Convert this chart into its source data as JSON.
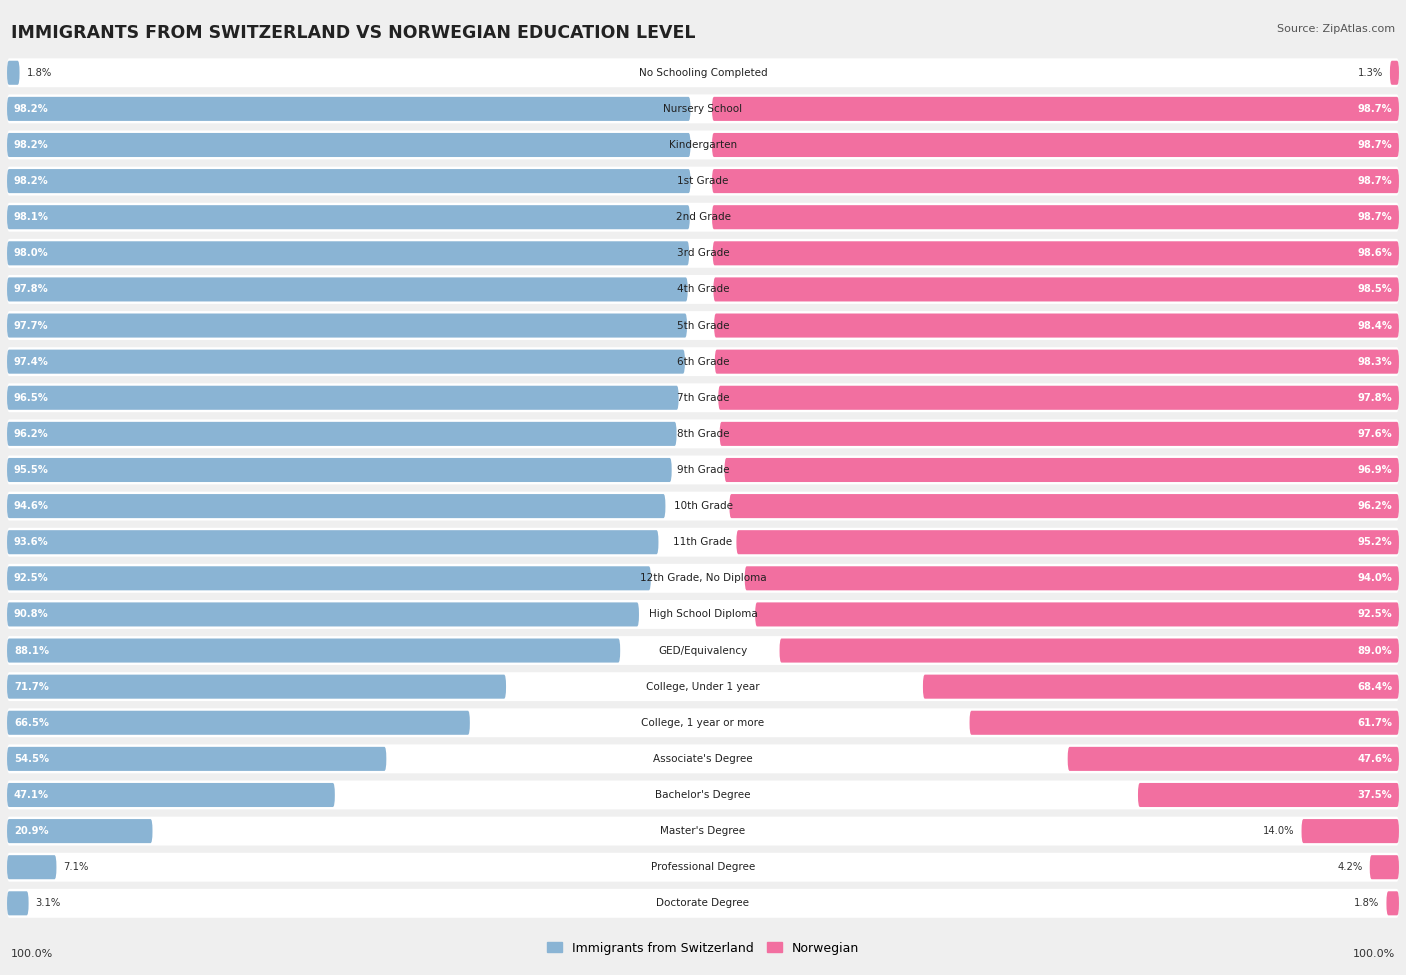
{
  "title": "IMMIGRANTS FROM SWITZERLAND VS NORWEGIAN EDUCATION LEVEL",
  "source": "Source: ZipAtlas.com",
  "legend_left": "Immigrants from Switzerland",
  "legend_right": "Norwegian",
  "left_label": "100.0%",
  "right_label": "100.0%",
  "color_left": "#8ab4d4",
  "color_right": "#f26fa0",
  "background_color": "#efefef",
  "bar_background": "#ffffff",
  "categories": [
    "No Schooling Completed",
    "Nursery School",
    "Kindergarten",
    "1st Grade",
    "2nd Grade",
    "3rd Grade",
    "4th Grade",
    "5th Grade",
    "6th Grade",
    "7th Grade",
    "8th Grade",
    "9th Grade",
    "10th Grade",
    "11th Grade",
    "12th Grade, No Diploma",
    "High School Diploma",
    "GED/Equivalency",
    "College, Under 1 year",
    "College, 1 year or more",
    "Associate's Degree",
    "Bachelor's Degree",
    "Master's Degree",
    "Professional Degree",
    "Doctorate Degree"
  ],
  "swiss_values": [
    1.8,
    98.2,
    98.2,
    98.2,
    98.1,
    98.0,
    97.8,
    97.7,
    97.4,
    96.5,
    96.2,
    95.5,
    94.6,
    93.6,
    92.5,
    90.8,
    88.1,
    71.7,
    66.5,
    54.5,
    47.1,
    20.9,
    7.1,
    3.1
  ],
  "norwegian_values": [
    1.3,
    98.7,
    98.7,
    98.7,
    98.7,
    98.6,
    98.5,
    98.4,
    98.3,
    97.8,
    97.6,
    96.9,
    96.2,
    95.2,
    94.0,
    92.5,
    89.0,
    68.4,
    61.7,
    47.6,
    37.5,
    14.0,
    4.2,
    1.8
  ]
}
